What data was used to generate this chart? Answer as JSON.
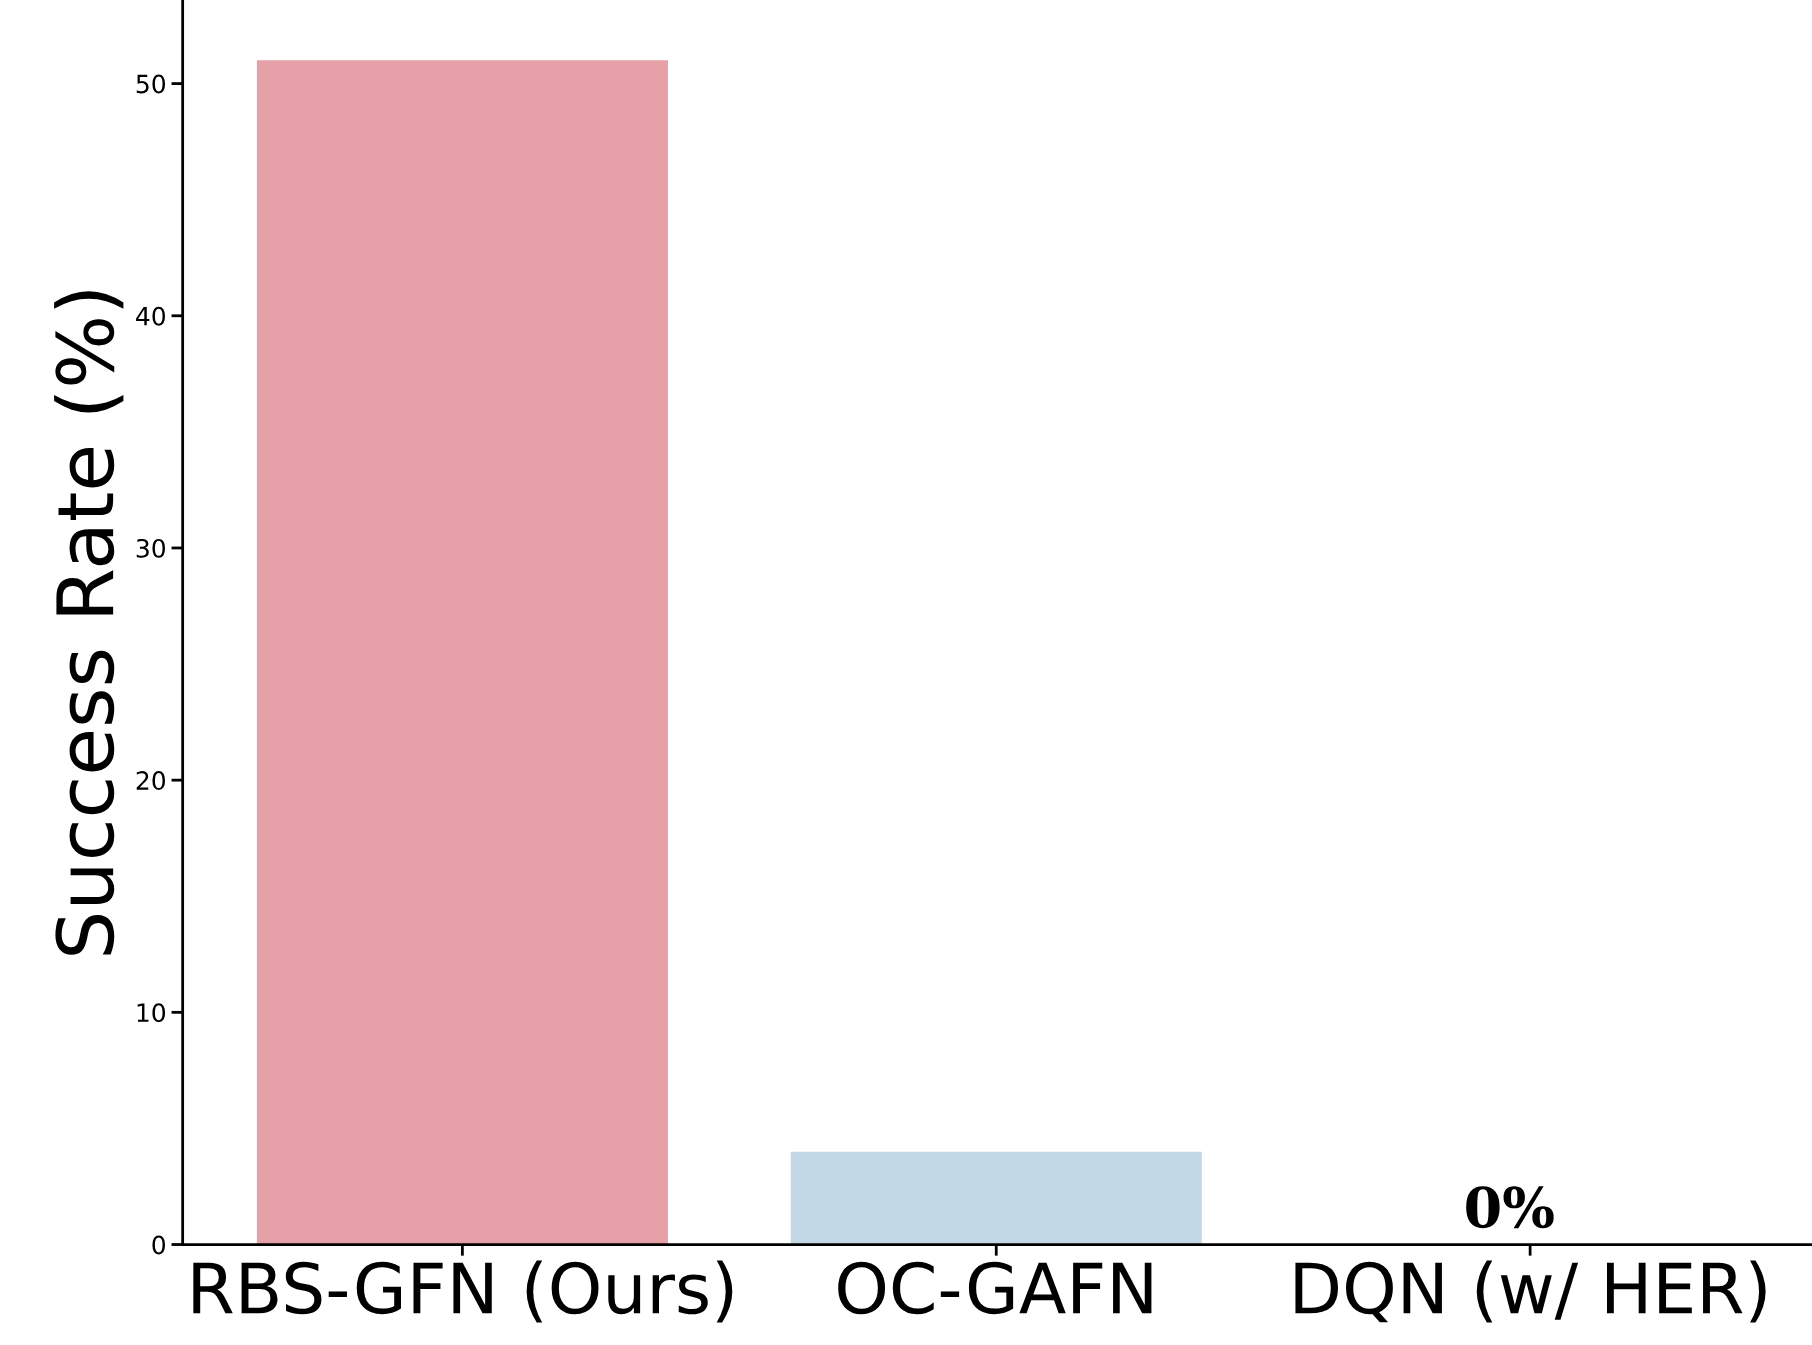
{
  "chart_data": {
    "type": "bar",
    "ylabel": "Success Rate (%)",
    "categories": [
      "RBS-GFN (Ours)",
      "OC-GAFN",
      "DQN (w/ HER)"
    ],
    "values": [
      51,
      4,
      0
    ],
    "colors": [
      "#e6a0a8",
      "#c2d8e4",
      "#c2d8e4"
    ],
    "ylim": [
      0,
      53.6
    ],
    "yticks": [
      0,
      10,
      20,
      30,
      40,
      50
    ],
    "grid": false,
    "legend": false,
    "annotations": [
      {
        "text": "0%",
        "x": "DQN (w/ HER)",
        "y": 0
      }
    ]
  }
}
